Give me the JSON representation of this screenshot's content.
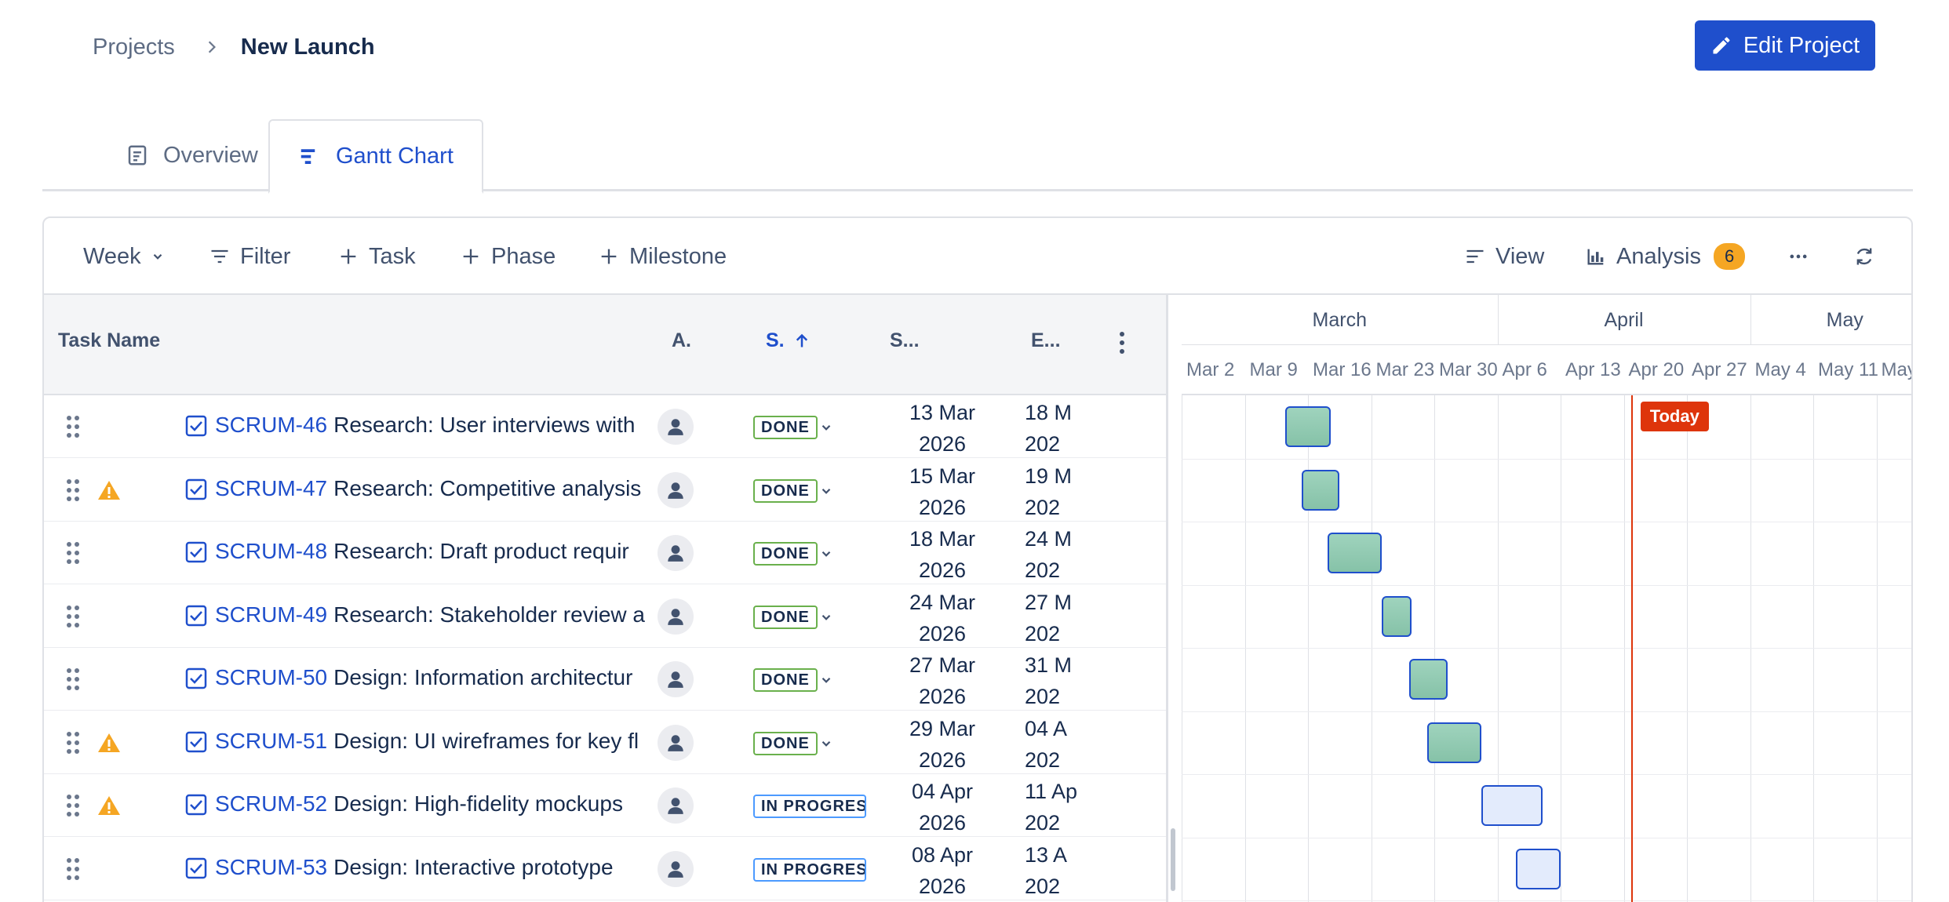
{
  "breadcrumb": {
    "parent": "Projects",
    "current": "New Launch"
  },
  "header": {
    "edit_label": "Edit Project"
  },
  "tabs": [
    {
      "label": "Overview",
      "icon": "document-icon"
    },
    {
      "label": "Gantt Chart",
      "icon": "gantt-icon",
      "active": true
    }
  ],
  "toolbar": {
    "zoom": "Week",
    "filter": "Filter",
    "task": "Task",
    "phase": "Phase",
    "milestone": "Milestone",
    "view": "View",
    "analysis": "Analysis",
    "analysis_count": "6"
  },
  "table": {
    "headers": {
      "task": "Task Name",
      "assignee": "A.",
      "status": "S.",
      "start": "S...",
      "end": "E..."
    },
    "rows": [
      {
        "key": "SCRUM-46",
        "title": "Research: User interviews with",
        "warning": false,
        "status": "DONE",
        "start": [
          "13 Mar",
          "2026"
        ],
        "end": [
          "18 M",
          "202"
        ]
      },
      {
        "key": "SCRUM-47",
        "title": "Research: Competitive analysis",
        "warning": true,
        "status": "DONE",
        "start": [
          "15 Mar",
          "2026"
        ],
        "end": [
          "19 M",
          "202"
        ]
      },
      {
        "key": "SCRUM-48",
        "title": "Research: Draft product requir",
        "warning": false,
        "status": "DONE",
        "start": [
          "18 Mar",
          "2026"
        ],
        "end": [
          "24 M",
          "202"
        ]
      },
      {
        "key": "SCRUM-49",
        "title": "Research: Stakeholder review a",
        "warning": false,
        "status": "DONE",
        "start": [
          "24 Mar",
          "2026"
        ],
        "end": [
          "27 M",
          "202"
        ]
      },
      {
        "key": "SCRUM-50",
        "title": "Design: Information architectur",
        "warning": false,
        "status": "DONE",
        "start": [
          "27 Mar",
          "2026"
        ],
        "end": [
          "31 M",
          "202"
        ]
      },
      {
        "key": "SCRUM-51",
        "title": "Design: UI wireframes for key fl",
        "warning": true,
        "status": "DONE",
        "start": [
          "29 Mar",
          "2026"
        ],
        "end": [
          "04 A",
          "202"
        ]
      },
      {
        "key": "SCRUM-52",
        "title": "Design: High-fidelity mockups",
        "warning": true,
        "status": "IN PROGRESS",
        "start": [
          "04 Apr",
          "2026"
        ],
        "end": [
          "11 Ap",
          "202"
        ]
      },
      {
        "key": "SCRUM-53",
        "title": "Design: Interactive prototype",
        "warning": false,
        "status": "IN PROGRESS",
        "start": [
          "08 Apr",
          "2026"
        ],
        "end": [
          "13 A",
          "202"
        ]
      }
    ]
  },
  "gantt": {
    "months": [
      "March",
      "April",
      "May"
    ],
    "weeks": [
      "Mar 2",
      "Mar 9",
      "Mar 16",
      "Mar 23",
      "Mar 30",
      "Apr 6",
      "Apr 13",
      "Apr 20",
      "Apr 27",
      "May 4",
      "May 11",
      "May"
    ],
    "today_label": "Today",
    "today_day": 49.8,
    "bars": [
      {
        "start_day": 11.5,
        "end_day": 16.5,
        "status": "done"
      },
      {
        "start_day": 13.3,
        "end_day": 17.5,
        "status": "done"
      },
      {
        "start_day": 16.2,
        "end_day": 22.2,
        "status": "done"
      },
      {
        "start_day": 22.2,
        "end_day": 25.5,
        "status": "done"
      },
      {
        "start_day": 25.2,
        "end_day": 29.5,
        "status": "done"
      },
      {
        "start_day": 27.2,
        "end_day": 33.2,
        "status": "done"
      },
      {
        "start_day": 33.2,
        "end_day": 40.0,
        "status": "in-progress"
      },
      {
        "start_day": 37.0,
        "end_day": 42.0,
        "status": "in-progress"
      }
    ]
  }
}
